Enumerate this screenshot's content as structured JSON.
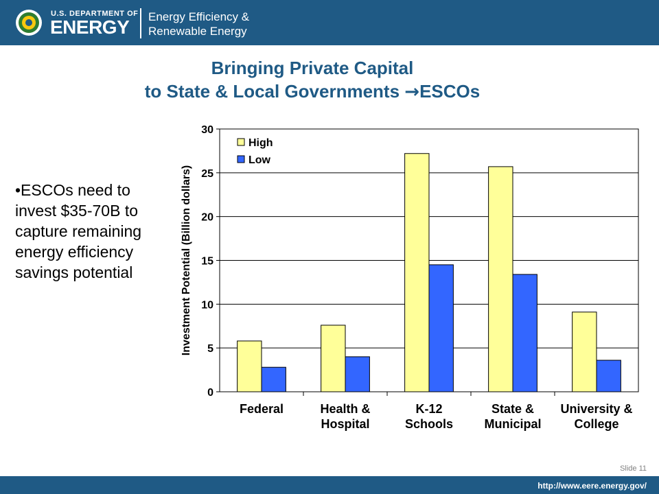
{
  "header": {
    "agency_small": "U.S. DEPARTMENT OF",
    "agency_big": "ENERGY",
    "office_line1": "Energy Efficiency &",
    "office_line2": "Renewable Energy",
    "brand_color": "#1f5a85"
  },
  "slide": {
    "title_line1": "Bringing Private Capital",
    "title_line2": "to State & Local Governments ",
    "title_arrow": "→",
    "title_tail": "ESCOs",
    "bullet": "•ESCOs need to invest $35-70B to capture remaining energy efficiency savings potential",
    "slide_number": "Slide 11",
    "url": "http://www.eere.energy.gov/"
  },
  "chart_data": {
    "type": "bar",
    "categories": [
      [
        "Federal"
      ],
      [
        "Health &",
        "Hospital"
      ],
      [
        "K-12",
        "Schools"
      ],
      [
        "State &",
        "Municipal"
      ],
      [
        "University &",
        "College"
      ]
    ],
    "series": [
      {
        "name": "High",
        "values": [
          5.8,
          7.6,
          27.2,
          25.7,
          9.1
        ],
        "color": "#ffff99"
      },
      {
        "name": "Low",
        "values": [
          2.8,
          4.0,
          14.5,
          13.4,
          3.6
        ],
        "color": "#3366ff"
      }
    ],
    "ylabel": "Investment Potential (Billion dollars)",
    "xlabel": "",
    "ylim": [
      0,
      30
    ],
    "yticks": [
      0,
      5,
      10,
      15,
      20,
      25,
      30
    ],
    "grid": true,
    "legend_position": "top-left"
  }
}
